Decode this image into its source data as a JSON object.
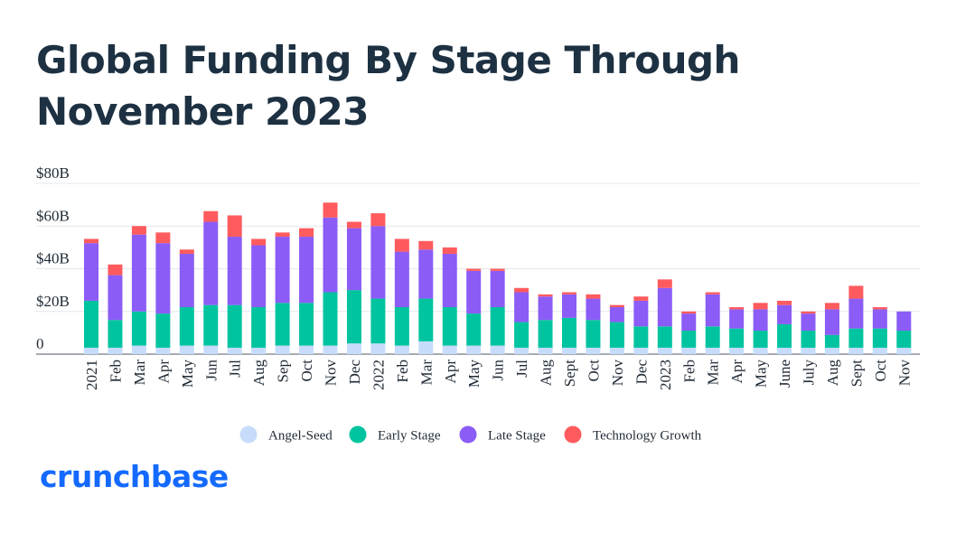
{
  "title": "Global Funding By Stage Through November 2023",
  "brand": {
    "name": "crunchbase",
    "color": "#146aff"
  },
  "chart_data": {
    "type": "bar",
    "stacked": true,
    "categories": [
      "2021",
      "Feb",
      "Mar",
      "Apr",
      "May",
      "Jun",
      "Jul",
      "Aug",
      "Sep",
      "Oct",
      "Nov",
      "Dec",
      "2022",
      "Feb",
      "Mar",
      "Apr",
      "May",
      "Jun",
      "Jul",
      "Aug",
      "Sept",
      "Oct",
      "Nov",
      "Dec",
      "2023",
      "Feb",
      "Mar",
      "Apr",
      "May",
      "June",
      "July",
      "Aug",
      "Sept",
      "Oct",
      "Nov"
    ],
    "series": [
      {
        "name": "Angel-Seed",
        "color": "#c6dcfa",
        "values": [
          3,
          3,
          4,
          3,
          4,
          4,
          3,
          3,
          4,
          4,
          4,
          5,
          5,
          4,
          6,
          4,
          4,
          4,
          3,
          3,
          3,
          3,
          3,
          3,
          3,
          3,
          3,
          3,
          3,
          3,
          3,
          3,
          3,
          3,
          3
        ]
      },
      {
        "name": "Early Stage",
        "color": "#00c49f",
        "values": [
          22,
          13,
          16,
          16,
          18,
          19,
          20,
          19,
          20,
          20,
          25,
          25,
          21,
          18,
          20,
          18,
          15,
          18,
          12,
          13,
          14,
          13,
          12,
          10,
          10,
          8,
          10,
          9,
          8,
          11,
          8,
          6,
          9,
          9,
          8
        ]
      },
      {
        "name": "Late Stage",
        "color": "#8b5cf6",
        "values": [
          27,
          21,
          36,
          33,
          25,
          39,
          32,
          29,
          31,
          31,
          35,
          29,
          34,
          26,
          23,
          25,
          20,
          17,
          14,
          11,
          11,
          10,
          7,
          12,
          18,
          8,
          15,
          9,
          10,
          9,
          8,
          12,
          14,
          9,
          9
        ]
      },
      {
        "name": "Technology Growth",
        "color": "#ff5b5e",
        "values": [
          2,
          5,
          4,
          5,
          2,
          5,
          10,
          3,
          2,
          4,
          7,
          3,
          6,
          6,
          4,
          3,
          1,
          1,
          2,
          1,
          1,
          2,
          1,
          2,
          4,
          1,
          1,
          1,
          3,
          2,
          1,
          3,
          6,
          1,
          0
        ]
      }
    ],
    "yticks": [
      {
        "value": 0,
        "label": "0"
      },
      {
        "value": 20,
        "label": "$20B"
      },
      {
        "value": 40,
        "label": "$40B"
      },
      {
        "value": 60,
        "label": "$60B"
      },
      {
        "value": 80,
        "label": "$80B"
      }
    ],
    "ylim": [
      0,
      80
    ],
    "grid": true,
    "legend_position": "bottom-center"
  }
}
